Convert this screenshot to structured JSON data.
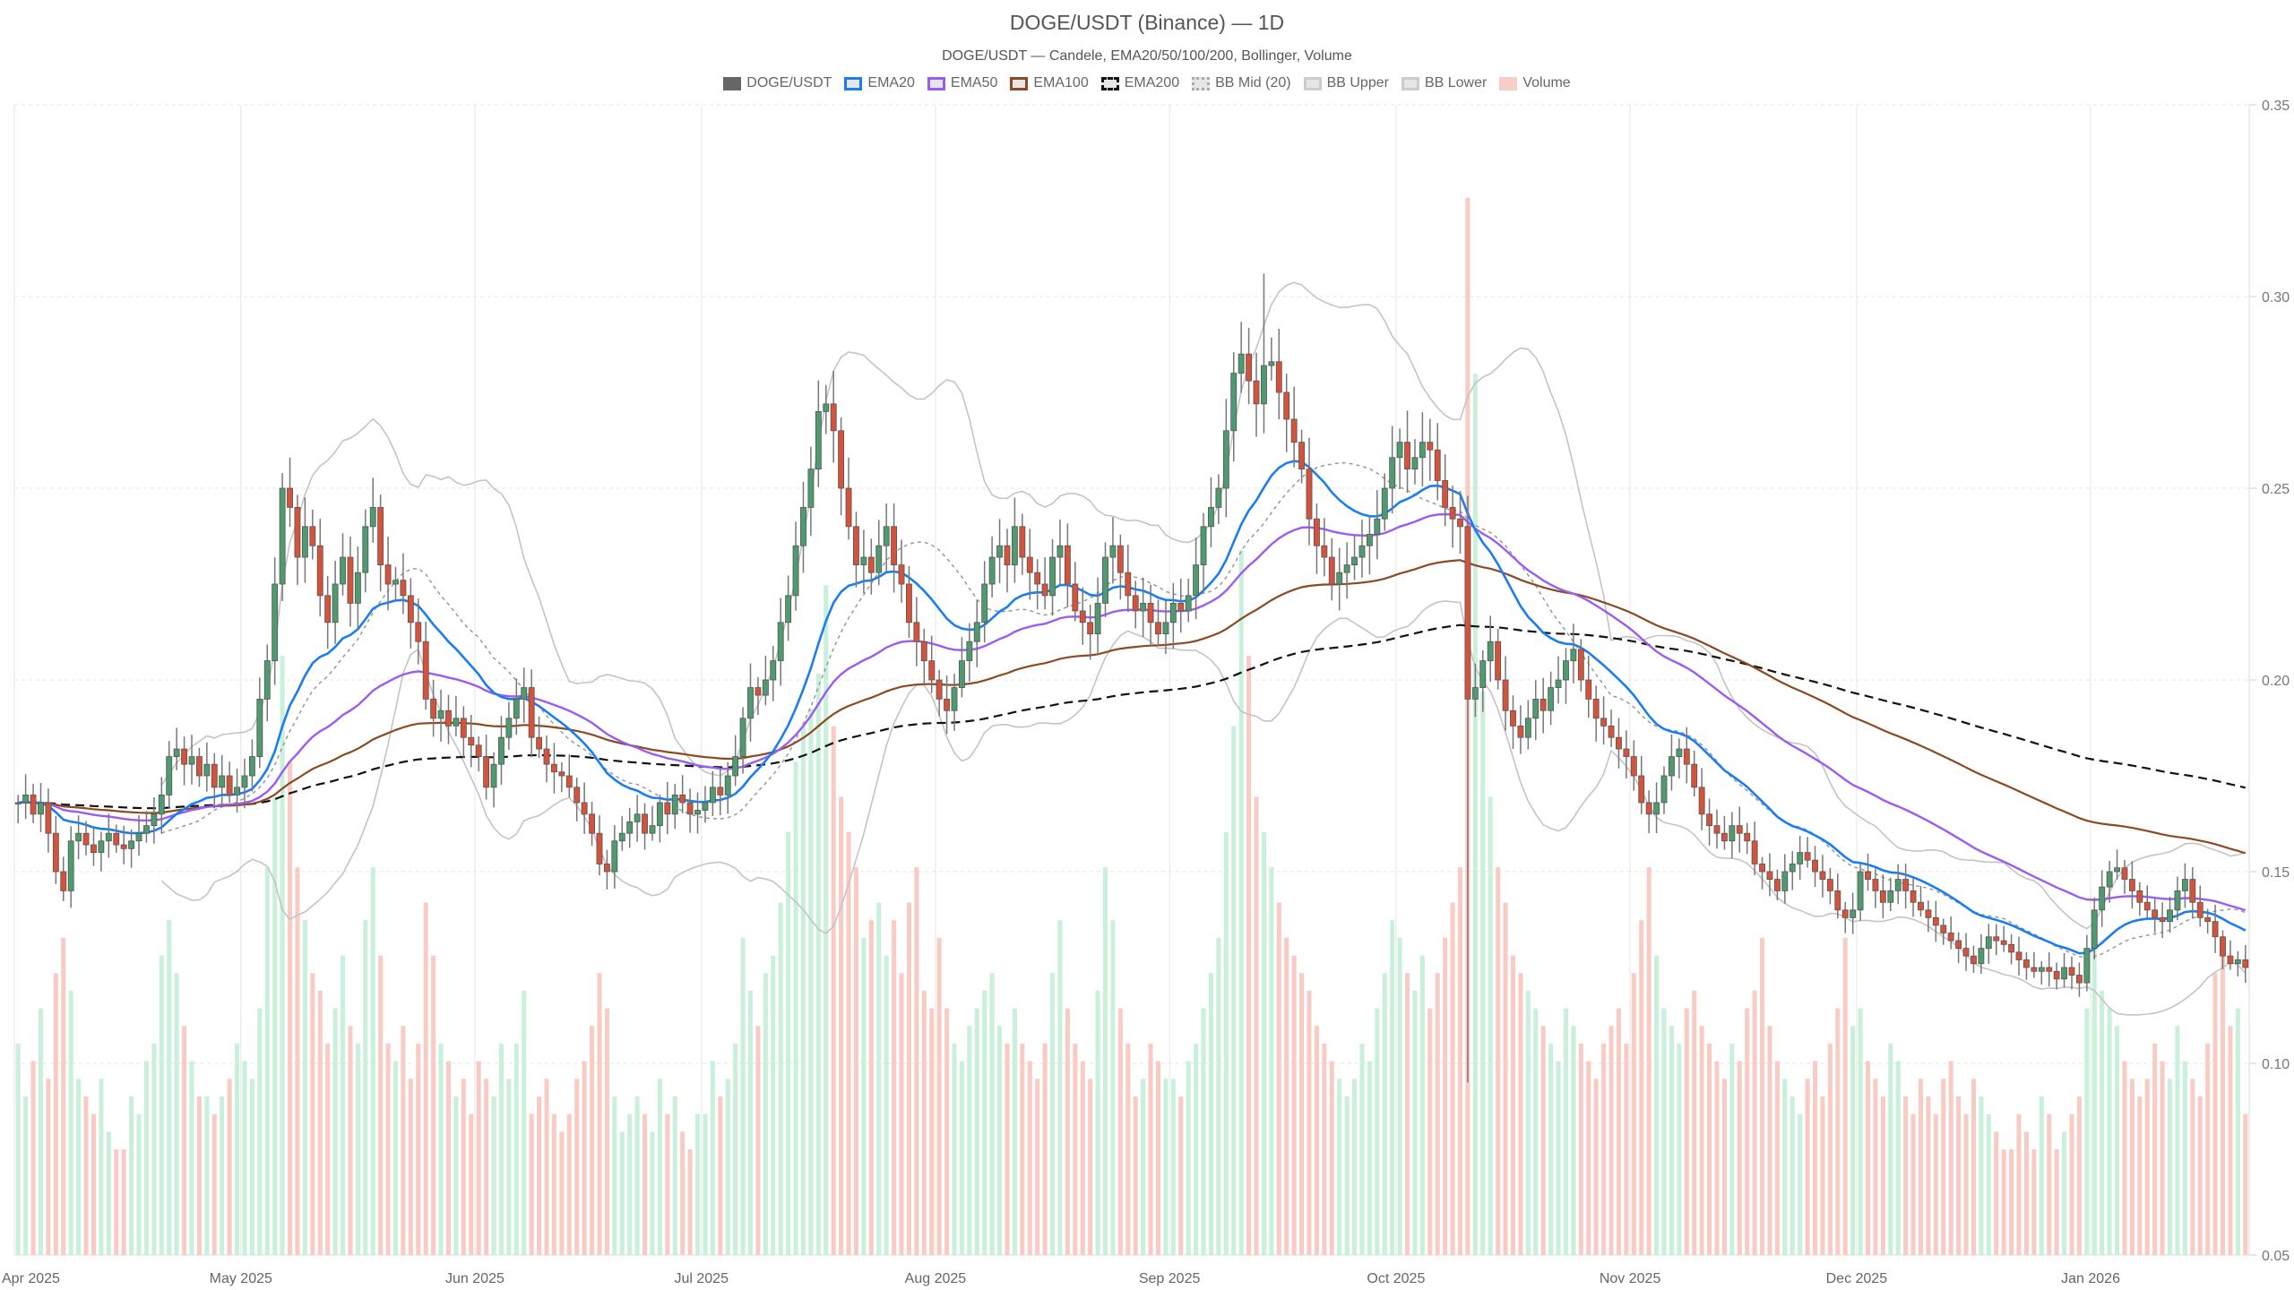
{
  "chart_data": {
    "type": "candlestick",
    "title": "DOGE/USDT (Binance) — 1D",
    "subtitle": "DOGE/USDT — Candele, EMA20/50/100/200, Bollinger, Volume",
    "start_date": "2025-04-01",
    "interval": "1D",
    "ylim": [
      0.05,
      0.35
    ],
    "yticks": [
      "0.05",
      "0.10",
      "0.15",
      "0.20",
      "0.25",
      "0.30",
      "0.35"
    ],
    "xticks": [
      {
        "label": "Apr 2025",
        "day": 0
      },
      {
        "label": "May 2025",
        "day": 30
      },
      {
        "label": "Jun 2025",
        "day": 61
      },
      {
        "label": "Jul 2025",
        "day": 91
      },
      {
        "label": "Aug 2025",
        "day": 122
      },
      {
        "label": "Sep 2025",
        "day": 153
      },
      {
        "label": "Oct 2025",
        "day": 183
      },
      {
        "label": "Nov 2025",
        "day": 214
      },
      {
        "label": "Dec 2025",
        "day": 244
      },
      {
        "label": "Jan 2026",
        "day": 275
      }
    ],
    "legend": [
      {
        "label": "DOGE/USDT",
        "color": "#666666",
        "style": "fill"
      },
      {
        "label": "EMA20",
        "color": "#1a7ef0",
        "style": "solid"
      },
      {
        "label": "EMA50",
        "color": "#9b5cf0",
        "style": "solid"
      },
      {
        "label": "EMA100",
        "color": "#8b4a22",
        "style": "solid"
      },
      {
        "label": "EMA200",
        "color": "#111111",
        "style": "dashed"
      },
      {
        "label": "BB Mid (20)",
        "color": "#aaaaaa",
        "style": "dotted"
      },
      {
        "label": "BB Upper",
        "color": "#cccccc",
        "style": "solid"
      },
      {
        "label": "BB Lower",
        "color": "#cccccc",
        "style": "solid"
      },
      {
        "label": "Volume",
        "color": "#f7cfc8",
        "style": "fill"
      }
    ],
    "colors": {
      "up": "#4f9a6e",
      "down": "#d4533c",
      "wick": "#777777",
      "vol_up": "#c9f0da",
      "vol_down": "#f8ccc5"
    },
    "close": [
      0.168,
      0.17,
      0.165,
      0.168,
      0.16,
      0.15,
      0.145,
      0.158,
      0.16,
      0.157,
      0.155,
      0.158,
      0.16,
      0.157,
      0.156,
      0.158,
      0.16,
      0.162,
      0.165,
      0.17,
      0.18,
      0.182,
      0.178,
      0.18,
      0.175,
      0.178,
      0.172,
      0.175,
      0.17,
      0.172,
      0.175,
      0.18,
      0.195,
      0.205,
      0.225,
      0.25,
      0.245,
      0.232,
      0.24,
      0.235,
      0.222,
      0.215,
      0.225,
      0.232,
      0.22,
      0.228,
      0.24,
      0.245,
      0.23,
      0.225,
      0.226,
      0.222,
      0.215,
      0.21,
      0.195,
      0.19,
      0.192,
      0.188,
      0.19,
      0.185,
      0.183,
      0.18,
      0.172,
      0.178,
      0.185,
      0.19,
      0.195,
      0.198,
      0.185,
      0.182,
      0.178,
      0.176,
      0.175,
      0.172,
      0.168,
      0.165,
      0.16,
      0.152,
      0.15,
      0.158,
      0.16,
      0.163,
      0.165,
      0.16,
      0.162,
      0.168,
      0.165,
      0.17,
      0.168,
      0.165,
      0.166,
      0.168,
      0.172,
      0.17,
      0.175,
      0.18,
      0.19,
      0.198,
      0.196,
      0.2,
      0.205,
      0.215,
      0.222,
      0.235,
      0.245,
      0.255,
      0.27,
      0.272,
      0.265,
      0.25,
      0.24,
      0.23,
      0.232,
      0.228,
      0.235,
      0.24,
      0.23,
      0.225,
      0.215,
      0.21,
      0.205,
      0.2,
      0.195,
      0.192,
      0.198,
      0.205,
      0.21,
      0.215,
      0.225,
      0.232,
      0.235,
      0.23,
      0.24,
      0.232,
      0.228,
      0.225,
      0.222,
      0.232,
      0.235,
      0.225,
      0.218,
      0.215,
      0.212,
      0.22,
      0.232,
      0.235,
      0.228,
      0.222,
      0.218,
      0.22,
      0.215,
      0.212,
      0.215,
      0.22,
      0.218,
      0.222,
      0.23,
      0.24,
      0.245,
      0.25,
      0.265,
      0.28,
      0.285,
      0.278,
      0.272,
      0.282,
      0.283,
      0.275,
      0.268,
      0.262,
      0.255,
      0.242,
      0.235,
      0.232,
      0.225,
      0.228,
      0.23,
      0.232,
      0.235,
      0.238,
      0.242,
      0.25,
      0.258,
      0.262,
      0.255,
      0.258,
      0.262,
      0.26,
      0.252,
      0.245,
      0.242,
      0.24,
      0.195,
      0.198,
      0.205,
      0.21,
      0.2,
      0.192,
      0.188,
      0.185,
      0.19,
      0.195,
      0.192,
      0.198,
      0.2,
      0.205,
      0.208,
      0.2,
      0.195,
      0.19,
      0.188,
      0.185,
      0.182,
      0.18,
      0.175,
      0.168,
      0.165,
      0.168,
      0.175,
      0.18,
      0.182,
      0.178,
      0.172,
      0.165,
      0.162,
      0.16,
      0.158,
      0.162,
      0.16,
      0.158,
      0.152,
      0.15,
      0.148,
      0.145,
      0.15,
      0.152,
      0.155,
      0.153,
      0.15,
      0.148,
      0.145,
      0.14,
      0.138,
      0.14,
      0.15,
      0.148,
      0.145,
      0.142,
      0.145,
      0.148,
      0.145,
      0.142,
      0.14,
      0.138,
      0.136,
      0.134,
      0.132,
      0.13,
      0.128,
      0.126,
      0.13,
      0.133,
      0.132,
      0.131,
      0.129,
      0.127,
      0.125,
      0.124,
      0.125,
      0.124,
      0.122,
      0.125,
      0.123,
      0.121,
      0.13,
      0.14,
      0.146,
      0.15,
      0.151,
      0.148,
      0.145,
      0.142,
      0.14,
      0.138,
      0.137,
      0.14,
      0.145,
      0.148,
      0.142,
      0.138,
      0.137,
      0.133,
      0.128,
      0.126,
      0.127,
      0.125
    ],
    "low_overrides": [
      {
        "day": 192,
        "low": 0.095
      }
    ],
    "high_overrides": [
      {
        "day": 165,
        "high": 0.306
      },
      {
        "day": 192,
        "high": 0.248
      }
    ],
    "volume": [
      60,
      45,
      55,
      70,
      50,
      80,
      90,
      75,
      50,
      45,
      40,
      50,
      35,
      30,
      30,
      45,
      40,
      55,
      60,
      85,
      95,
      80,
      65,
      55,
      45,
      45,
      40,
      45,
      50,
      60,
      55,
      50,
      70,
      110,
      130,
      170,
      140,
      110,
      95,
      80,
      75,
      60,
      70,
      85,
      65,
      60,
      95,
      110,
      85,
      60,
      55,
      65,
      50,
      60,
      100,
      85,
      60,
      55,
      45,
      50,
      40,
      55,
      50,
      45,
      60,
      50,
      60,
      75,
      40,
      45,
      50,
      40,
      35,
      40,
      50,
      55,
      65,
      80,
      70,
      45,
      35,
      40,
      45,
      40,
      35,
      50,
      40,
      45,
      35,
      30,
      40,
      40,
      55,
      45,
      50,
      60,
      90,
      75,
      65,
      80,
      85,
      100,
      120,
      140,
      150,
      155,
      165,
      190,
      150,
      130,
      120,
      110,
      90,
      95,
      100,
      85,
      95,
      80,
      100,
      110,
      75,
      70,
      90,
      70,
      60,
      55,
      65,
      70,
      75,
      80,
      65,
      60,
      70,
      60,
      55,
      50,
      60,
      80,
      95,
      70,
      60,
      55,
      50,
      75,
      110,
      95,
      70,
      60,
      45,
      50,
      60,
      55,
      50,
      50,
      45,
      55,
      60,
      70,
      80,
      90,
      120,
      150,
      200,
      170,
      130,
      120,
      110,
      100,
      90,
      85,
      80,
      75,
      65,
      60,
      55,
      50,
      45,
      50,
      60,
      55,
      70,
      80,
      95,
      90,
      80,
      75,
      85,
      70,
      80,
      90,
      100,
      110,
      300,
      250,
      160,
      130,
      110,
      100,
      85,
      80,
      75,
      70,
      65,
      60,
      55,
      70,
      65,
      60,
      55,
      50,
      60,
      65,
      70,
      60,
      80,
      95,
      110,
      85,
      70,
      65,
      60,
      70,
      75,
      65,
      60,
      55,
      50,
      60,
      55,
      70,
      75,
      90,
      65,
      55,
      50,
      45,
      40,
      50,
      55,
      45,
      60,
      70,
      90,
      65,
      70,
      55,
      50,
      45,
      60,
      55,
      45,
      40,
      50,
      45,
      40,
      50,
      55,
      45,
      40,
      50,
      45,
      40,
      35,
      30,
      30,
      40,
      35,
      30,
      45,
      40,
      30,
      35,
      40,
      45,
      70,
      90,
      75,
      70,
      65,
      55,
      50,
      45,
      50,
      60,
      55,
      50,
      65,
      55,
      50,
      45,
      60,
      80,
      90,
      65,
      70,
      40
    ],
    "volume_max_scale": 310
  }
}
